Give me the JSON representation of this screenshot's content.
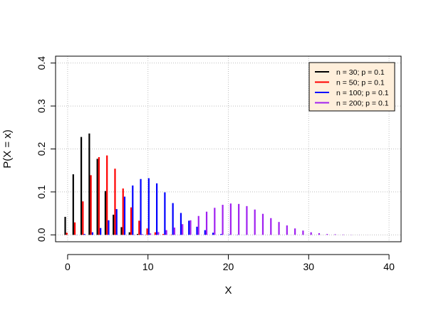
{
  "chart_data": {
    "type": "bar",
    "title": "",
    "xlabel": "X",
    "ylabel": "P(X = x)",
    "xlim": [
      -1.5,
      41.5
    ],
    "ylim": [
      -0.016,
      0.416
    ],
    "xticks": [
      0,
      10,
      20,
      30,
      40
    ],
    "xtick_labels": [
      "0",
      "10",
      "20",
      "30",
      "40"
    ],
    "yticks": [
      0.0,
      0.1,
      0.2,
      0.3,
      0.4
    ],
    "ytick_labels": [
      "0.0",
      "0.1",
      "0.2",
      "0.3",
      "0.4"
    ],
    "grid": true,
    "legend_position": "top-right",
    "legend_background": "#FFEFDB",
    "series": [
      {
        "name": "n = 30; p = 0.1",
        "color": "#000000",
        "x": [
          0,
          1,
          2,
          3,
          4,
          5,
          6,
          7,
          8,
          9,
          10,
          11,
          12,
          13,
          14,
          15,
          16,
          17,
          18,
          19,
          20,
          21,
          22,
          23,
          24,
          25,
          26,
          27,
          28,
          29,
          30,
          31,
          32,
          33,
          34,
          35,
          36,
          37,
          38,
          39,
          40
        ],
        "values": [
          0.042,
          0.141,
          0.228,
          0.236,
          0.177,
          0.102,
          0.047,
          0.018,
          0.006,
          0.002,
          0.0004,
          0.0001,
          0,
          0,
          0,
          0,
          0,
          0,
          0,
          0,
          0,
          0,
          0,
          0,
          0,
          0,
          0,
          0,
          0,
          0,
          0,
          0,
          0,
          0,
          0,
          0,
          0,
          0,
          0,
          0,
          0
        ]
      },
      {
        "name": "n = 50; p = 0.1",
        "color": "#FF0000",
        "x": [
          0,
          1,
          2,
          3,
          4,
          5,
          6,
          7,
          8,
          9,
          10,
          11,
          12,
          13,
          14,
          15,
          16,
          17,
          18,
          19,
          20,
          21,
          22,
          23,
          24,
          25,
          26,
          27,
          28,
          29,
          30,
          31,
          32,
          33,
          34,
          35,
          36,
          37,
          38,
          39,
          40
        ],
        "values": [
          0.005,
          0.029,
          0.078,
          0.139,
          0.181,
          0.185,
          0.154,
          0.108,
          0.064,
          0.033,
          0.015,
          0.006,
          0.002,
          0.0007,
          0.0002,
          0,
          0,
          0,
          0,
          0,
          0,
          0,
          0,
          0,
          0,
          0,
          0,
          0,
          0,
          0,
          0,
          0,
          0,
          0,
          0,
          0,
          0,
          0,
          0,
          0,
          0
        ]
      },
      {
        "name": "n = 100; p = 0.1",
        "color": "#0000FF",
        "x": [
          0,
          1,
          2,
          3,
          4,
          5,
          6,
          7,
          8,
          9,
          10,
          11,
          12,
          13,
          14,
          15,
          16,
          17,
          18,
          19,
          20,
          21,
          22,
          23,
          24,
          25,
          26,
          27,
          28,
          29,
          30,
          31,
          32,
          33,
          34,
          35,
          36,
          37,
          38,
          39,
          40
        ],
        "values": [
          3e-05,
          0.0003,
          0.002,
          0.006,
          0.016,
          0.034,
          0.06,
          0.089,
          0.115,
          0.13,
          0.132,
          0.12,
          0.099,
          0.074,
          0.051,
          0.033,
          0.019,
          0.011,
          0.005,
          0.002,
          0.001,
          0.0005,
          0.0002,
          0.0001,
          0,
          0,
          0,
          0,
          0,
          0,
          0,
          0,
          0,
          0,
          0,
          0,
          0,
          0,
          0,
          0,
          0
        ]
      },
      {
        "name": "n = 200; p = 0.1",
        "color": "#A020F0",
        "x": [
          0,
          1,
          2,
          3,
          4,
          5,
          6,
          7,
          8,
          9,
          10,
          11,
          12,
          13,
          14,
          15,
          16,
          17,
          18,
          19,
          20,
          21,
          22,
          23,
          24,
          25,
          26,
          27,
          28,
          29,
          30,
          31,
          32,
          33,
          34,
          35,
          36,
          37,
          38,
          39,
          40
        ],
        "values": [
          0,
          0,
          0,
          0,
          0,
          0,
          0.0001,
          0.0003,
          0.0007,
          0.0017,
          0.0035,
          0.0065,
          0.011,
          0.017,
          0.025,
          0.034,
          0.044,
          0.054,
          0.063,
          0.07,
          0.073,
          0.072,
          0.067,
          0.059,
          0.049,
          0.039,
          0.03,
          0.022,
          0.015,
          0.01,
          0.006,
          0.004,
          0.002,
          0.0014,
          0.0008,
          0.0004,
          0.0002,
          0.0001,
          6e-05,
          3e-05,
          1e-05
        ]
      }
    ]
  }
}
